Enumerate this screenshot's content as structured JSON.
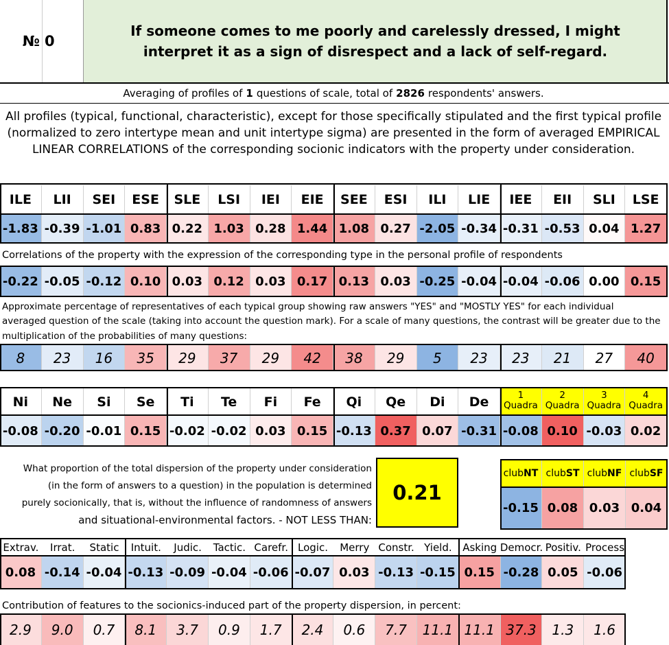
{
  "header": {
    "number_sign": "№",
    "number": "0",
    "question": "If someone comes to me poorly and carelessly dressed, I might interpret it as a sign of disrespect and a lack of self-regard."
  },
  "averaging": {
    "prefix": "Averaging of profiles of",
    "questions": "1",
    "middle": "questions of scale, total of",
    "respondents": "2826",
    "suffix": "respondents' answers."
  },
  "description": [
    "All profiles (typical, functional, characteristic), except for those specifically stipulated and the first typical profile",
    "(normalized to zero intertype mean and unit intertype sigma) are presented in the form of averaged EMPIRICAL",
    "LINEAR CORRELATIONS of the corresponding socionic indicators with the property under consideration."
  ],
  "types": {
    "names": [
      "ILE",
      "LII",
      "SEI",
      "ESE",
      "SLE",
      "LSI",
      "IEI",
      "EIE",
      "SEE",
      "ESI",
      "ILI",
      "LIE",
      "IEE",
      "EII",
      "SLI",
      "LSE"
    ],
    "values": [
      "-1.83",
      "-0.39",
      "-1.01",
      "0.83",
      "0.22",
      "1.03",
      "0.28",
      "1.44",
      "1.08",
      "0.27",
      "-2.05",
      "-0.34",
      "-0.31",
      "-0.53",
      "0.04",
      "1.27"
    ],
    "correlation_caption": "Correlations of the property with the expression of the corresponding type in the personal profile of respondents",
    "correlations": [
      "-0.22",
      "-0.05",
      "-0.12",
      "0.10",
      "0.03",
      "0.12",
      "0.03",
      "0.17",
      "0.13",
      "0.03",
      "-0.25",
      "-0.04",
      "-0.04",
      "-0.06",
      "0.00",
      "0.15"
    ],
    "percentage_caption": [
      "Approximate percentage of representatives of each typical group showing raw answers \"YES\" and \"MOSTLY YES\" for each individual",
      "averaged question of the scale (taking into account the question mark). For a scale of many questions, the contrast will be greater due to the",
      "multiplication of the probabilities of many questions:"
    ],
    "percentages": [
      "8",
      "23",
      "16",
      "35",
      "29",
      "37",
      "29",
      "42",
      "38",
      "29",
      "5",
      "23",
      "23",
      "21",
      "27",
      "40"
    ]
  },
  "functions": {
    "names": [
      "Ni",
      "Ne",
      "Si",
      "Se",
      "Ti",
      "Te",
      "Fi",
      "Fe",
      "Qi",
      "Qe",
      "Di",
      "De"
    ],
    "values": [
      "-0.08",
      "-0.20",
      "-0.01",
      "0.15",
      "-0.02",
      "-0.02",
      "0.03",
      "0.15",
      "-0.13",
      "0.37",
      "0.07",
      "-0.31"
    ]
  },
  "quadras": {
    "names": [
      {
        "number": "1",
        "label": "Quadra"
      },
      {
        "number": "2",
        "label": "Quadra"
      },
      {
        "number": "3",
        "label": "Quadra"
      },
      {
        "number": "4",
        "label": "Quadra"
      }
    ],
    "values": [
      "-0.08",
      "0.10",
      "-0.03",
      "0.02"
    ]
  },
  "dispersion": {
    "text": [
      "What proportion of the total dispersion of the property under consideration",
      "(in the form of answers to a question) in the population is determined",
      "purely socionically, that is, without the influence of randomness of answers",
      "and situational-environmental factors. - NOT LESS THAN:"
    ],
    "value": "0.21"
  },
  "clubs": {
    "names": [
      {
        "prefix": "club",
        "code": "NT"
      },
      {
        "prefix": "club",
        "code": "ST"
      },
      {
        "prefix": "club",
        "code": "NF"
      },
      {
        "prefix": "club",
        "code": "SF"
      }
    ],
    "values": [
      "-0.15",
      "0.08",
      "0.03",
      "0.04"
    ]
  },
  "dichotomies": {
    "names": [
      "Extrav.",
      "Irrat.",
      "Static",
      "Intuit.",
      "Judic.",
      "Tactic.",
      "Carefr.",
      "Logic.",
      "Merry",
      "Constr.",
      "Yield.",
      "Asking",
      "Democr.",
      "Positiv.",
      "Process"
    ],
    "values": [
      "0.08",
      "-0.14",
      "-0.04",
      "-0.13",
      "-0.09",
      "-0.04",
      "-0.06",
      "-0.07",
      "0.03",
      "-0.13",
      "-0.15",
      "0.15",
      "-0.28",
      "0.05",
      "-0.06"
    ],
    "contribution_caption": "Contribution of features to the socionics-induced part of the property dispersion, in percent:",
    "contributions": [
      "2.9",
      "9.0",
      "0.7",
      "8.1",
      "3.7",
      "0.9",
      "1.7",
      "2.4",
      "0.6",
      "7.7",
      "11.1",
      "11.1",
      "37.3",
      "1.3",
      "1.6"
    ]
  }
}
